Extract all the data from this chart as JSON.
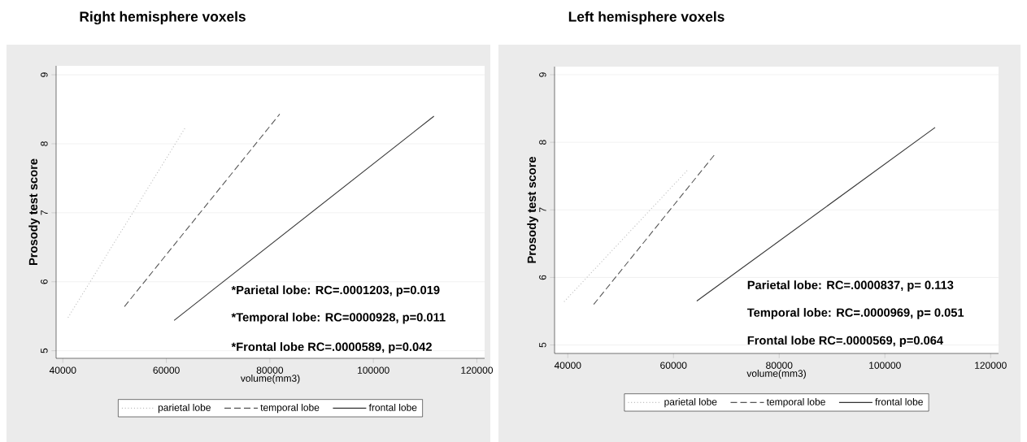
{
  "chart_data": [
    {
      "type": "line",
      "title": "Right hemisphere voxels",
      "xlabel": "volume(mm3)",
      "ylabel": "Prosody test score",
      "series": [
        {
          "name": "parietal lobe",
          "color": "#bbbbbb",
          "line_style": "dotted",
          "x": [
            41000,
            63700
          ],
          "values": [
            5.48,
            8.24
          ]
        },
        {
          "name": "temporal lobe",
          "color": "#555555",
          "line_style": "dashed",
          "x": [
            51900,
            81900
          ],
          "values": [
            5.64,
            8.43
          ]
        },
        {
          "name": "frontal lobe",
          "color": "#333333",
          "line_style": "solid",
          "x": [
            61500,
            111700
          ],
          "values": [
            5.44,
            8.4
          ]
        }
      ],
      "xlim": [
        38700,
        121500
      ],
      "ylim": [
        4.89,
        9.13
      ],
      "xticks": [
        40000,
        60000,
        80000,
        100000,
        120000
      ],
      "yticks": [
        5,
        6,
        7,
        8,
        9
      ],
      "grid": "y",
      "legend": "bottom",
      "marker": "none",
      "annotations": [
        "*Parietal lobe: RC=.0001203, p=0.019",
        "*Temporal lobe: RC=0000928, p=0.011",
        "*Frontal lobe RC=.0000589, p=0.042"
      ]
    },
    {
      "type": "line",
      "title": "Left hemisphere voxels",
      "xlabel": "volume(mm3)",
      "ylabel": "Prosody test score",
      "series": [
        {
          "name": "parietal lobe",
          "color": "#bbbbbb",
          "line_style": "dotted",
          "x": [
            39300,
            62800
          ],
          "values": [
            5.64,
            7.6
          ]
        },
        {
          "name": "temporal lobe",
          "color": "#555555",
          "line_style": "dashed",
          "x": [
            44900,
            67700
          ],
          "values": [
            5.6,
            7.81
          ]
        },
        {
          "name": "frontal lobe",
          "color": "#333333",
          "line_style": "solid",
          "x": [
            64400,
            109500
          ],
          "values": [
            5.65,
            8.22
          ]
        }
      ],
      "xlim": [
        37500,
        121500
      ],
      "ylim": [
        4.875,
        9.12
      ],
      "xticks": [
        40000,
        60000,
        80000,
        100000,
        120000
      ],
      "yticks": [
        5,
        6,
        7,
        8,
        9
      ],
      "grid": "y",
      "legend": "bottom",
      "marker": "none",
      "annotations": [
        "Parietal lobe: RC=.0000837, p= 0.113",
        "Temporal lobe: RC=.0000969, p= 0.051",
        "Frontal lobe RC=.0000569, p=0.064"
      ]
    }
  ]
}
